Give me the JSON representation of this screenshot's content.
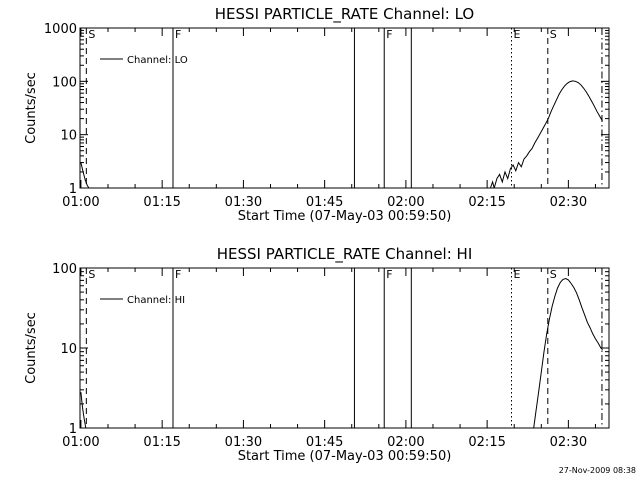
{
  "footer": {
    "timestamp": "27-Nov-2009 08:38"
  },
  "chart_data": [
    {
      "type": "line",
      "title": "HESSI PARTICLE_RATE Channel: LO",
      "xlabel": "Start Time (07-May-03 00:59:50)",
      "ylabel": "Counts/sec",
      "yscale": "log",
      "ylim": [
        1,
        1000
      ],
      "xlim_minutes": [
        -0.17,
        97.5
      ],
      "x_ticks": [
        "01:00",
        "01:15",
        "01:30",
        "01:45",
        "02:00",
        "02:15",
        "02:30"
      ],
      "y_ticks": [
        "1",
        "10",
        "100",
        "1000"
      ],
      "legend": "Channel: LO",
      "markers": [
        {
          "label": "S",
          "t": 1.0,
          "style": "dashed"
        },
        {
          "label": "F",
          "t": 17.0,
          "style": "solid"
        },
        {
          "label": "",
          "t": 50.5,
          "style": "solid"
        },
        {
          "label": "F",
          "t": 56.0,
          "style": "solid"
        },
        {
          "label": "",
          "t": 61.0,
          "style": "solid"
        },
        {
          "label": "E",
          "t": 79.5,
          "style": "dotted"
        },
        {
          "label": "S",
          "t": 86.2,
          "style": "dashed"
        },
        {
          "label": "",
          "t": 96.2,
          "style": "dashdot"
        }
      ],
      "series": [
        {
          "segments": [
            [
              [
                0.0,
                3.0
              ],
              [
                0.4,
                2.0
              ],
              [
                0.8,
                1.4
              ],
              [
                1.2,
                1.1
              ],
              [
                1.5,
                1.0
              ]
            ],
            [
              [
                75.6,
                1.0
              ],
              [
                76.0,
                1.3
              ],
              [
                76.3,
                1.0
              ],
              [
                76.8,
                1.5
              ],
              [
                77.3,
                1.8
              ],
              [
                77.8,
                1.3
              ],
              [
                78.3,
                2.0
              ],
              [
                78.8,
                1.5
              ],
              [
                79.3,
                2.3
              ],
              [
                79.8,
                2.7
              ],
              [
                80.3,
                2.1
              ],
              [
                80.8,
                3.0
              ],
              [
                81.3,
                2.5
              ],
              [
                81.8,
                3.5
              ],
              [
                82.3,
                4.0
              ],
              [
                82.8,
                4.8
              ],
              [
                83.3,
                5.5
              ],
              [
                83.8,
                7.0
              ],
              [
                84.3,
                8.5
              ],
              [
                84.8,
                10.5
              ],
              [
                85.3,
                13.0
              ],
              [
                85.8,
                16.0
              ],
              [
                86.3,
                20.0
              ],
              [
                86.8,
                27.0
              ],
              [
                87.3,
                35.0
              ],
              [
                87.8,
                45.0
              ],
              [
                88.3,
                58.0
              ],
              [
                88.8,
                70.0
              ],
              [
                89.3,
                82.0
              ],
              [
                89.8,
                92.0
              ],
              [
                90.3,
                99.0
              ],
              [
                90.8,
                102.0
              ],
              [
                91.3,
                100.0
              ],
              [
                91.8,
                95.0
              ],
              [
                92.3,
                86.0
              ],
              [
                92.8,
                75.0
              ],
              [
                93.3,
                63.0
              ],
              [
                93.8,
                52.0
              ],
              [
                94.3,
                42.0
              ],
              [
                94.8,
                34.0
              ],
              [
                95.3,
                27.0
              ],
              [
                95.8,
                22.0
              ],
              [
                96.3,
                18.0
              ]
            ]
          ]
        }
      ]
    },
    {
      "type": "line",
      "title": "HESSI PARTICLE_RATE Channel: HI",
      "xlabel": "Start Time (07-May-03 00:59:50)",
      "ylabel": "Counts/sec",
      "yscale": "log",
      "ylim": [
        1,
        100
      ],
      "xlim_minutes": [
        -0.17,
        97.5
      ],
      "x_ticks": [
        "01:00",
        "01:15",
        "01:30",
        "01:45",
        "02:00",
        "02:15",
        "02:30"
      ],
      "y_ticks": [
        "1",
        "10",
        "100"
      ],
      "legend": "Channel: HI",
      "markers": [
        {
          "label": "S",
          "t": 1.0,
          "style": "dashed"
        },
        {
          "label": "F",
          "t": 17.0,
          "style": "solid"
        },
        {
          "label": "",
          "t": 50.5,
          "style": "solid"
        },
        {
          "label": "F",
          "t": 56.0,
          "style": "solid"
        },
        {
          "label": "",
          "t": 61.0,
          "style": "solid"
        },
        {
          "label": "E",
          "t": 79.5,
          "style": "dotted"
        },
        {
          "label": "S",
          "t": 86.2,
          "style": "dashed"
        },
        {
          "label": "",
          "t": 96.2,
          "style": "dashdot"
        }
      ],
      "series": [
        {
          "segments": [
            [
              [
                0.0,
                2.8
              ],
              [
                0.3,
                1.8
              ],
              [
                0.6,
                1.3
              ],
              [
                0.9,
                1.0
              ]
            ],
            [
              [
                83.6,
                1.0
              ],
              [
                84.0,
                1.6
              ],
              [
                84.5,
                2.8
              ],
              [
                85.0,
                5.0
              ],
              [
                85.5,
                9.0
              ],
              [
                86.0,
                15.0
              ],
              [
                86.5,
                23.0
              ],
              [
                87.0,
                33.0
              ],
              [
                87.5,
                44.0
              ],
              [
                88.0,
                56.0
              ],
              [
                88.5,
                66.0
              ],
              [
                89.0,
                72.0
              ],
              [
                89.5,
                74.0
              ],
              [
                90.0,
                71.0
              ],
              [
                90.5,
                64.0
              ],
              [
                91.0,
                57.0
              ],
              [
                91.5,
                49.0
              ],
              [
                92.0,
                40.0
              ],
              [
                92.5,
                32.0
              ],
              [
                93.0,
                26.0
              ],
              [
                93.5,
                21.0
              ],
              [
                94.0,
                18.0
              ],
              [
                94.5,
                15.0
              ],
              [
                95.0,
                13.0
              ],
              [
                95.5,
                11.5
              ],
              [
                96.0,
                10.0
              ],
              [
                96.3,
                9.5
              ]
            ]
          ]
        }
      ]
    }
  ]
}
